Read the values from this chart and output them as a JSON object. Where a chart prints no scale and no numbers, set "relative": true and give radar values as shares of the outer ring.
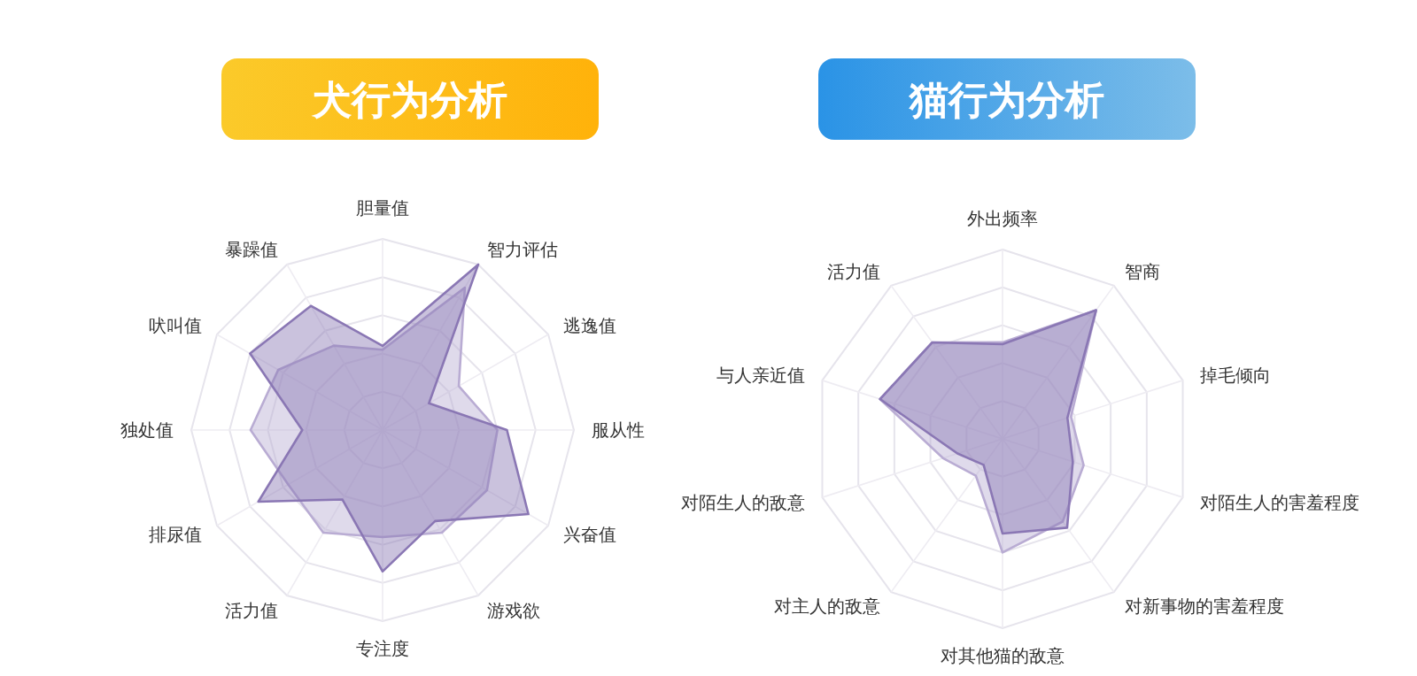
{
  "chart_data": [
    {
      "type": "radar",
      "title": "犬行为分析",
      "relative": true,
      "categories": [
        "胆量值",
        "智力评估",
        "逃逸值",
        "服从性",
        "兴奋值",
        "游戏欲",
        "专注度",
        "活力值",
        "排尿值",
        "独处值",
        "吠叫值",
        "暴躁值"
      ],
      "series": [
        {
          "color": "#b9acd3",
          "values": [
            0.42,
            0.86,
            0.46,
            0.6,
            0.63,
            0.62,
            0.56,
            0.62,
            0.57,
            0.69,
            0.63,
            0.51
          ]
        },
        {
          "color": "#8a77b4",
          "values": [
            0.44,
            1.0,
            0.28,
            0.65,
            0.88,
            0.55,
            0.74,
            0.42,
            0.75,
            0.42,
            0.8,
            0.75
          ]
        }
      ]
    },
    {
      "type": "radar",
      "title": "猫行为分析",
      "relative": true,
      "categories": [
        "外出频率",
        "智商",
        "掉毛倾向",
        "对陌生人的害羞程度",
        "对新事物的害羞程度",
        "对其他猫的敌意",
        "对主人的敌意",
        "对陌生人的敌意",
        "与人亲近值",
        "活力值"
      ],
      "series": [
        {
          "color": "#b9acd3",
          "values": [
            0.51,
            0.84,
            0.38,
            0.45,
            0.54,
            0.6,
            0.24,
            0.33,
            0.68,
            0.63
          ]
        },
        {
          "color": "#8a77b4",
          "values": [
            0.5,
            0.84,
            0.36,
            0.39,
            0.58,
            0.5,
            0.17,
            0.25,
            0.68,
            0.63
          ]
        }
      ]
    }
  ]
}
